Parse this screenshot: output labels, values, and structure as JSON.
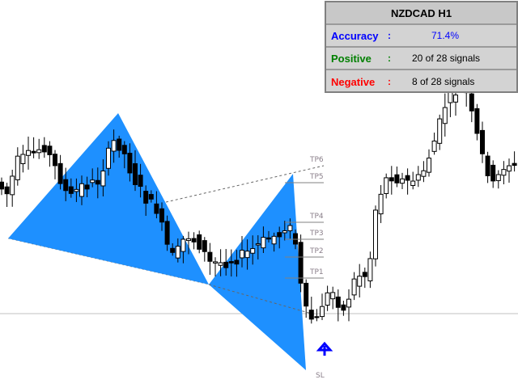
{
  "panel": {
    "title": "NZDCAD  H1",
    "accuracy_label": "Accuracy",
    "accuracy_value": "71.4%",
    "positive_label": "Positive",
    "positive_value": "20 of 28 signals",
    "negative_label": "Negative",
    "negative_value": "8 of 28 signals",
    "colon": ":",
    "colors": {
      "accuracy": "#0000ff",
      "positive": "#008000",
      "negative": "#ff0000"
    }
  },
  "levels": [
    "TP6",
    "TP5",
    "TP4",
    "TP3",
    "TP2",
    "TP1",
    "SL"
  ],
  "pattern_color": "#1e90ff",
  "signal": "buy-arrow-icon"
}
